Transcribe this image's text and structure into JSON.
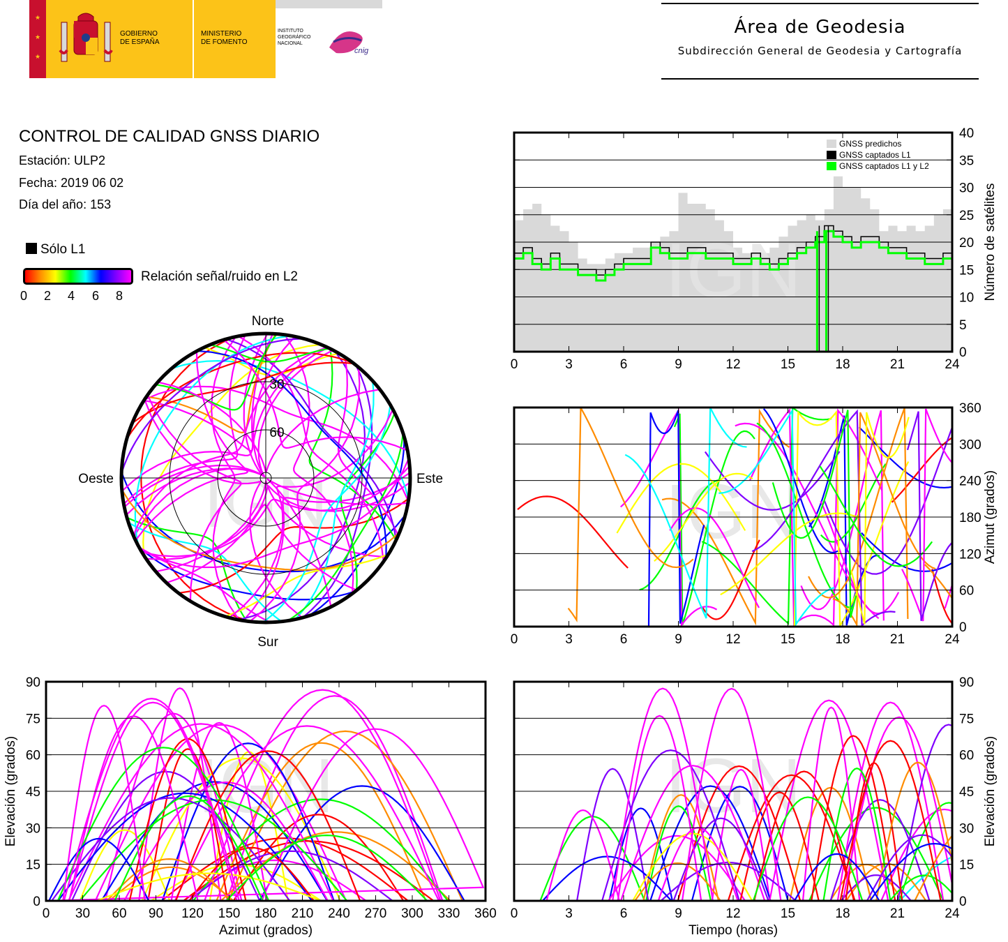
{
  "header": {
    "gobierno": "GOBIERNO\nDE ESPAÑA",
    "ministerio": "MINISTERIO\nDE FOMENTO",
    "instituto": "INSTITUTO\nGEOGRÁFICO\nNACIONAL",
    "area_title": "Área de Geodesia",
    "area_subtitle": "Subdirección General de Geodesia y Cartografía"
  },
  "info": {
    "title": "CONTROL DE CALIDAD GNSS DIARIO",
    "station": "Estación: ULP2",
    "date": "Fecha: 2019 06 02",
    "doy": "Día del año: 153",
    "l1_only": "Sólo L1",
    "snr_label": "Relación señal/ruido en L2",
    "snr_ticks": [
      "0",
      "2",
      "4",
      "6",
      "8"
    ]
  },
  "watermark": "IGN",
  "colors": {
    "predicted": "#d9d9d9",
    "captured_l1": "#000000",
    "captured_l1l2": "#00ff00",
    "snr_scale": [
      "#ff0000",
      "#ff8c00",
      "#ffff00",
      "#00ff00",
      "#00ffff",
      "#0000ff",
      "#8000ff",
      "#ff00ff"
    ]
  },
  "chart_data": [
    {
      "type": "area",
      "id": "satellites",
      "ylabel": "Número de satélites",
      "xlim": [
        0,
        24
      ],
      "ylim": [
        0,
        40
      ],
      "x_ticks": [
        "0",
        "3",
        "6",
        "9",
        "12",
        "15",
        "18",
        "21",
        "24"
      ],
      "y_ticks": [
        "0",
        "5",
        "10",
        "15",
        "20",
        "25",
        "30",
        "35",
        "40"
      ],
      "legend": [
        "GNSS predichos",
        "GNSS captados L1",
        "GNSS captados L1 y L2"
      ],
      "legend_position": "top-right",
      "grid": true,
      "series": [
        {
          "name": "GNSS predichos",
          "x": [
            0,
            0.5,
            1,
            1.5,
            2,
            2.5,
            3,
            3.5,
            4,
            4.5,
            5,
            5.5,
            6,
            6.5,
            7,
            7.5,
            8,
            8.5,
            9,
            9.5,
            10,
            10.5,
            11,
            11.5,
            12,
            12.5,
            13,
            13.5,
            14,
            14.5,
            15,
            15.5,
            16,
            16.5,
            17,
            17.5,
            18,
            18.5,
            19,
            19.5,
            20,
            20.5,
            21,
            21.5,
            22,
            22.5,
            23,
            23.5,
            24
          ],
          "values": [
            24,
            26,
            27,
            25,
            23,
            22,
            20,
            17,
            16,
            16,
            17,
            18,
            18,
            19,
            19,
            20,
            21,
            22,
            29,
            27,
            27,
            26,
            24,
            22,
            19,
            18,
            18,
            18,
            19,
            21,
            23,
            24,
            25,
            24,
            26,
            32,
            30,
            30,
            28,
            26,
            22,
            23,
            22,
            23,
            22,
            23,
            25,
            26,
            25
          ]
        },
        {
          "name": "GNSS captados L1",
          "x": [
            0,
            0.5,
            1,
            1.5,
            2,
            2.5,
            3,
            3.5,
            4,
            4.5,
            5,
            5.5,
            6,
            6.5,
            7,
            7.5,
            8,
            8.5,
            9,
            9.5,
            10,
            10.5,
            11,
            11.5,
            12,
            12.5,
            13,
            13.5,
            14,
            14.5,
            15,
            15.5,
            16,
            16.5,
            17,
            17.5,
            18,
            18.5,
            19,
            19.5,
            20,
            20.5,
            21,
            21.5,
            22,
            22.5,
            23,
            23.5,
            24
          ],
          "values": [
            18,
            19,
            17,
            16,
            18,
            16,
            16,
            15,
            15,
            14,
            15,
            16,
            17,
            17,
            17,
            20,
            19,
            18,
            18,
            19,
            19,
            18,
            18,
            18,
            17,
            17,
            18,
            17,
            16,
            17,
            18,
            19,
            20,
            21,
            23,
            22,
            21,
            20,
            21,
            21,
            20,
            19,
            19,
            18,
            18,
            17,
            17,
            18,
            18
          ]
        },
        {
          "name": "GNSS captados L1 y L2",
          "x": [
            0,
            0.5,
            1,
            1.5,
            2,
            2.5,
            3,
            3.5,
            4,
            4.5,
            5,
            5.5,
            6,
            6.5,
            7,
            7.5,
            8,
            8.5,
            9,
            9.5,
            10,
            10.5,
            11,
            11.5,
            12,
            12.5,
            13,
            13.5,
            14,
            14.5,
            15,
            15.5,
            16,
            16.5,
            17,
            17.5,
            18,
            18.5,
            19,
            19.5,
            20,
            20.5,
            21,
            21.5,
            22,
            22.5,
            23,
            23.5,
            24
          ],
          "values": [
            17,
            18,
            16,
            15,
            17,
            15,
            15,
            14,
            14,
            13,
            14,
            15,
            16,
            16,
            16,
            19,
            18,
            17,
            17,
            18,
            18,
            17,
            17,
            17,
            16,
            16,
            17,
            16,
            15,
            16,
            17,
            18,
            19,
            20,
            22,
            21,
            20,
            19,
            20,
            20,
            19,
            18,
            18,
            17,
            17,
            16,
            16,
            17,
            16
          ]
        }
      ],
      "outage": {
        "x": [
          16.6,
          17.1
        ],
        "value": 0
      }
    },
    {
      "type": "scatter",
      "id": "azimuth-time",
      "ylabel": "Azimut (grados)",
      "xlim": [
        0,
        24
      ],
      "ylim": [
        0,
        360
      ],
      "x_ticks": [
        "0",
        "3",
        "6",
        "9",
        "12",
        "15",
        "18",
        "21",
        "24"
      ],
      "y_ticks": [
        "0",
        "60",
        "120",
        "180",
        "240",
        "300",
        "360"
      ],
      "grid": true,
      "note_tracks": 40
    },
    {
      "type": "scatter",
      "id": "elevation-azimuth",
      "xlabel": "Azimut (grados)",
      "ylabel": "Elevación (grados)",
      "xlim": [
        0,
        360
      ],
      "ylim": [
        0,
        90
      ],
      "x_ticks": [
        "0",
        "30",
        "60",
        "90",
        "120",
        "150",
        "180",
        "210",
        "240",
        "270",
        "300",
        "330",
        "360"
      ],
      "y_ticks": [
        "0",
        "15",
        "30",
        "45",
        "60",
        "75",
        "90"
      ],
      "grid": true
    },
    {
      "type": "scatter",
      "id": "elevation-time",
      "xlabel": "Tiempo (horas)",
      "ylabel": "Elevación (grados)",
      "xlim": [
        0,
        24
      ],
      "ylim": [
        0,
        90
      ],
      "x_ticks": [
        "0",
        "3",
        "6",
        "9",
        "12",
        "15",
        "18",
        "21",
        "24"
      ],
      "y_ticks": [
        "0",
        "15",
        "30",
        "45",
        "60",
        "75",
        "90"
      ],
      "grid": true
    },
    {
      "type": "scatter",
      "id": "skyplot",
      "labels": {
        "north": "Norte",
        "south": "Sur",
        "east": "Este",
        "west": "Oeste"
      },
      "rings": [
        "30",
        "60"
      ]
    }
  ]
}
